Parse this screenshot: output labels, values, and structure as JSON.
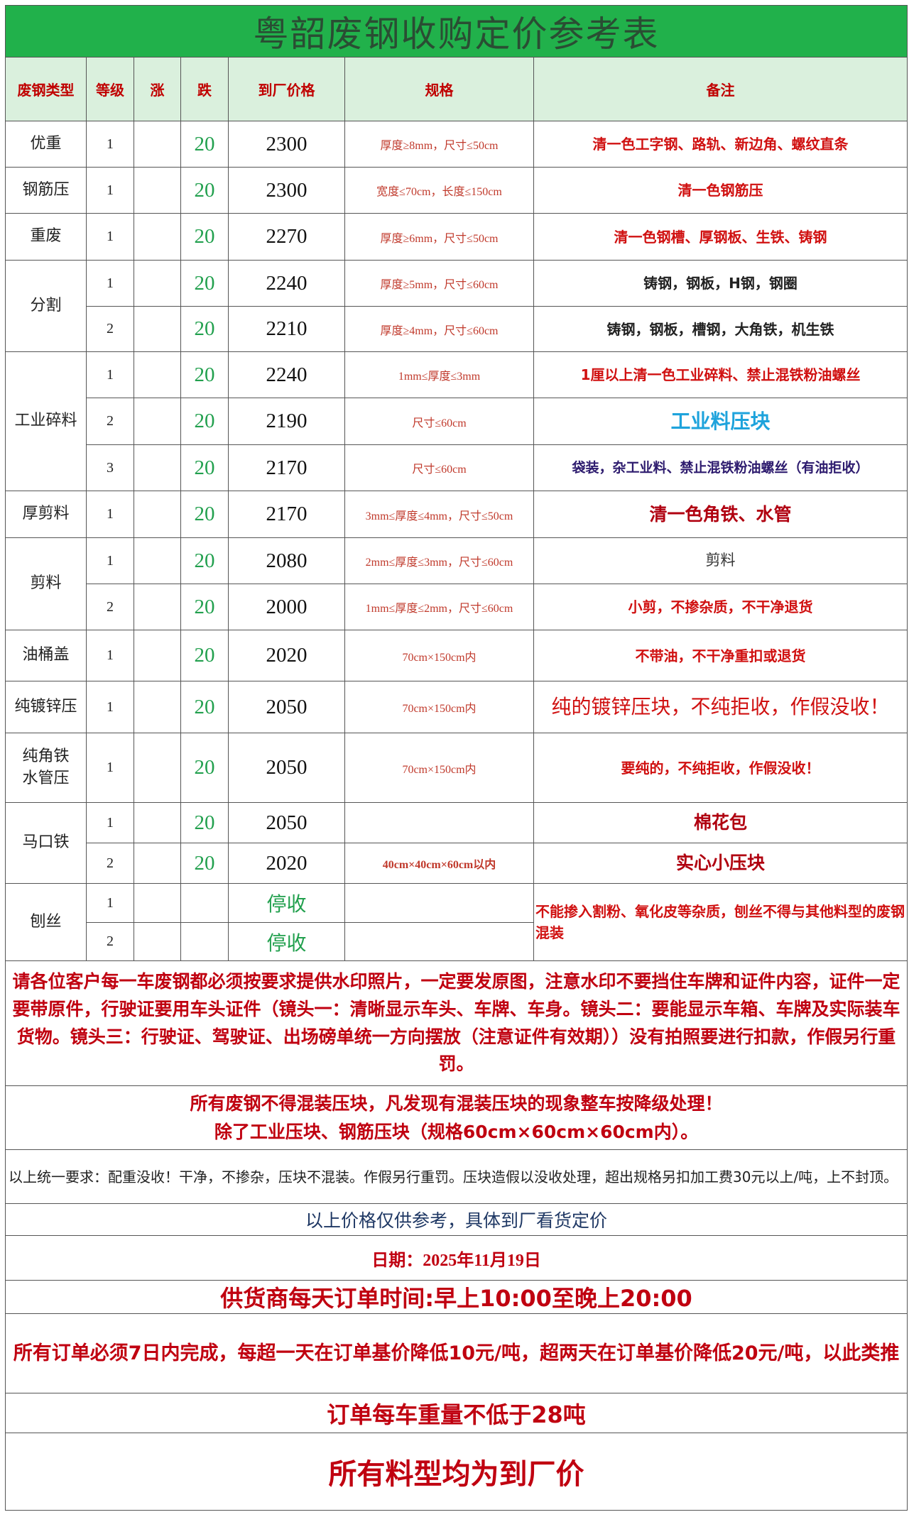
{
  "title": "粤韶废钢收购定价参考表",
  "headers": [
    "废钢类型",
    "等级",
    "涨",
    "跌",
    "到厂价格",
    "规格",
    "备注"
  ],
  "colors": {
    "title_bg": "#21b14b",
    "header_bg": "#daf0dd",
    "header_text": "#c00000",
    "fall_green": "#22a04e",
    "note_red": "#d01010",
    "note_blue": "#1ea3dc"
  },
  "groups": [
    {
      "type": "优重",
      "rows": [
        {
          "grade": "1",
          "rise": "",
          "fall": "20",
          "price": "2300",
          "spec": "厚度≥8mm，尺寸≤50cm",
          "note": "清一色工字钢、路轨、新边角、螺纹直条",
          "note_style": "red"
        }
      ]
    },
    {
      "type": "钢筋压",
      "rows": [
        {
          "grade": "1",
          "rise": "",
          "fall": "20",
          "price": "2300",
          "spec": "宽度≤70cm，长度≤150cm",
          "note": "清一色钢筋压",
          "note_style": "red"
        }
      ]
    },
    {
      "type": "重废",
      "rows": [
        {
          "grade": "1",
          "rise": "",
          "fall": "20",
          "price": "2270",
          "spec": "厚度≥6mm，尺寸≤50cm",
          "note": "清一色钢槽、厚钢板、生铁、铸钢",
          "note_style": "red"
        }
      ]
    },
    {
      "type": "分割",
      "rows": [
        {
          "grade": "1",
          "rise": "",
          "fall": "20",
          "price": "2240",
          "spec": "厚度≥5mm，尺寸≤60cm",
          "note": "铸钢，钢板，H钢，钢圈",
          "note_style": "black"
        },
        {
          "grade": "2",
          "rise": "",
          "fall": "20",
          "price": "2210",
          "spec": "厚度≥4mm，尺寸≤60cm",
          "note": "铸钢，钢板，槽钢，大角铁，机生铁",
          "note_style": "black"
        }
      ]
    },
    {
      "type": "工业碎料",
      "rows": [
        {
          "grade": "1",
          "rise": "",
          "fall": "20",
          "price": "2240",
          "spec": "1mm≤厚度≤3mm",
          "note": "1厘以上清一色工业碎料、禁止混铁粉油螺丝",
          "note_style": "red"
        },
        {
          "grade": "2",
          "rise": "",
          "fall": "20",
          "price": "2190",
          "spec": "尺寸≤60cm",
          "note": "工业料压块",
          "note_style": "blue"
        },
        {
          "grade": "3",
          "rise": "",
          "fall": "20",
          "price": "2170",
          "spec": "尺寸≤60cm",
          "note": "袋装，杂工业料、禁止混铁粉油螺丝（有油拒收）",
          "note_style": "navy"
        }
      ]
    },
    {
      "type": "厚剪料",
      "rows": [
        {
          "grade": "1",
          "rise": "",
          "fall": "20",
          "price": "2170",
          "spec": "3mm≤厚度≤4mm，尺寸≤50cm",
          "note": "清一色角铁、水管",
          "note_style": "dark"
        }
      ]
    },
    {
      "type": "剪料",
      "rows": [
        {
          "grade": "1",
          "rise": "",
          "fall": "20",
          "price": "2080",
          "spec": "2mm≤厚度≤3mm，尺寸≤60cm",
          "note": "剪料",
          "note_style": "plain"
        },
        {
          "grade": "2",
          "rise": "",
          "fall": "20",
          "price": "2000",
          "spec": "1mm≤厚度≤2mm，尺寸≤60cm",
          "note": "小剪，不掺杂质，不干净退货",
          "note_style": "red"
        }
      ]
    },
    {
      "type": "油桶盖",
      "rows": [
        {
          "grade": "1",
          "rise": "",
          "fall": "20",
          "price": "2020",
          "spec": "70cm×150cm内",
          "note": "不带油，不干净重扣或退货",
          "note_style": "red"
        }
      ]
    },
    {
      "type": "纯镀锌压",
      "rows": [
        {
          "grade": "1",
          "rise": "",
          "fall": "20",
          "price": "2050",
          "spec": "70cm×150cm内",
          "note": "纯的镀锌压块，不纯拒收，作假没收！",
          "note_style": "big"
        }
      ]
    },
    {
      "type": "纯角铁水管压",
      "type_lines": [
        "纯角铁",
        "水管压"
      ],
      "rows": [
        {
          "grade": "1",
          "rise": "",
          "fall": "20",
          "price": "2050",
          "spec": "70cm×150cm内",
          "note": "要纯的，不纯拒收，作假没收！",
          "note_style": "red"
        }
      ]
    },
    {
      "type": "马口铁",
      "rows": [
        {
          "grade": "1",
          "rise": "",
          "fall": "20",
          "price": "2050",
          "spec": "",
          "note": "棉花包",
          "note_style": "dark"
        },
        {
          "grade": "2",
          "rise": "",
          "fall": "20",
          "price": "2020",
          "spec": "40cm×40cm×60cm以内",
          "spec_bold": true,
          "note": "实心小压块",
          "note_style": "dark"
        }
      ]
    },
    {
      "type": "刨丝",
      "rows": [
        {
          "grade": "1",
          "rise": "",
          "fall": "",
          "price": "停收",
          "price_stop": true,
          "spec": "",
          "note": "不能掺入割粉、氧化皮等杂质，刨丝不得与其他料型的废钢混装",
          "note_style": "red",
          "note_rowspan": 2
        },
        {
          "grade": "2",
          "rise": "",
          "fall": "",
          "price": "停收",
          "price_stop": true,
          "spec": "",
          "note": null
        }
      ]
    }
  ],
  "footer": {
    "photo_notice": "请各位客户每一车废钢都必须按要求提供水印照片，一定要发原图，注意水印不要挡住车牌和证件内容，证件一定要带原件，行驶证要用车头证件（镜头一：清晰显示车头、车牌、车身。镜头二：要能显示车箱、车牌及实际装车货物。镜头三：行驶证、驾驶证、出场磅单统一方向摆放（注意证件有效期））没有拍照要进行扣款，作假另行重罚。",
    "mix_line1": "所有废钢不得混装压块，凡发现有混装压块的现象整车按降级处理！",
    "mix_line2": "除了工业压块、钢筋压块（规格60cm×60cm×60cm内）。",
    "unified": "以上统一要求：配重没收！干净，不掺杂，压块不混装。作假另行重罚。压块造假以没收处理，超出规格另扣加工费30元以上/吨，上不封顶。",
    "reference": "以上价格仅供参考，具体到厂看货定价",
    "date": "日期：2025年11月19日",
    "order_hours": "供货商每天订单时间:早上10:00至晚上20:00",
    "order_deadline": "所有订单必须7日内完成，每超一天在订单基价降低10元/吨，超两天在订单基价降低20元/吨，以此类推",
    "min_weight": "订单每车重量不低于28吨",
    "factory_price": "所有料型均为到厂价"
  }
}
